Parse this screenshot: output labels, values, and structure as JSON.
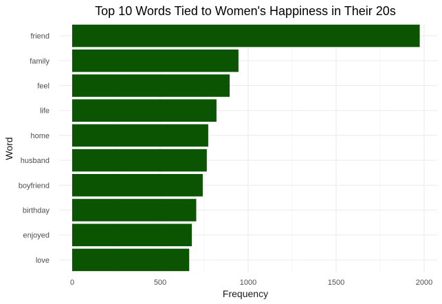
{
  "chart_data": {
    "type": "bar",
    "orientation": "horizontal",
    "title": "Top 10 Words Tied to Women's Happiness in Their 20s",
    "xlabel": "Frequency",
    "ylabel": "Word",
    "categories": [
      "friend",
      "family",
      "feel",
      "life",
      "home",
      "husband",
      "boyfriend",
      "birthday",
      "enjoyed",
      "love"
    ],
    "values": [
      1975,
      945,
      895,
      820,
      773,
      765,
      742,
      705,
      680,
      665
    ],
    "xlim": [
      0,
      2000
    ],
    "xticks": [
      0,
      500,
      1000,
      1500,
      2000
    ],
    "bar_color": "#0b5402",
    "grid": true,
    "legend": "none"
  }
}
